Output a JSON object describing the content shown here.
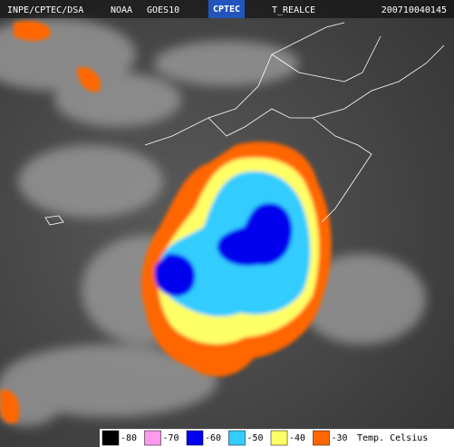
{
  "header": {
    "source": "INPE/CPTEC/DSA",
    "agency": "NOAA",
    "satellite": "GOES10",
    "logo": "CPTEC",
    "product": "T_REALCE",
    "timestamp": "200710040145"
  },
  "legend": {
    "entries": [
      {
        "value": -80,
        "color": "#000000"
      },
      {
        "value": -70,
        "color": "#ff99ee"
      },
      {
        "value": -60,
        "color": "#0000ee"
      },
      {
        "value": -50,
        "color": "#33ccff"
      },
      {
        "value": -40,
        "color": "#ffff66"
      },
      {
        "value": -30,
        "color": "#ff6600"
      }
    ],
    "title": "Temp. Celsius"
  }
}
